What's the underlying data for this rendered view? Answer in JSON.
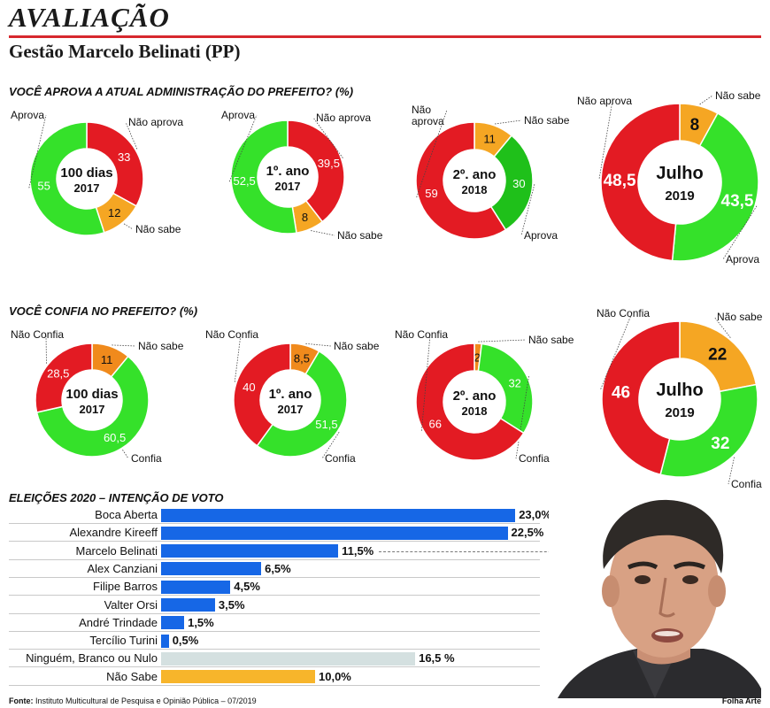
{
  "header": {
    "title": "AVALIAÇÃO",
    "subtitle": "Gestão Marcelo Belinati (PP)"
  },
  "section_approve": "VOCÊ APROVA A ATUAL ADMINISTRAÇÃO DO PREFEITO? (%)",
  "section_trust": "VOCÊ CONFIA NO PREFEITO? (%)",
  "section_votes": "ELEIÇÕES 2020 – INTENÇÃO DE VOTO",
  "colors": {
    "green": "#35e12a",
    "green_dark": "#1fc01a",
    "red": "#e31b23",
    "orange_yellow": "#f5a623",
    "orange": "#f08a1c",
    "blue": "#1667e6",
    "light_gray_bar": "#d4e0e0",
    "yellow_bar": "#f7b52b"
  },
  "chart_data": [
    {
      "type": "pie",
      "title": "VOCÊ APROVA A ATUAL ADMINISTRAÇÃO DO PREFEITO? (%)",
      "donuts": [
        {
          "center": [
            "100 dias",
            "2017"
          ],
          "slices": [
            {
              "label": "Não aprova",
              "value": 33,
              "text": "33",
              "color": "red"
            },
            {
              "label": "Não sabe",
              "value": 12,
              "text": "12",
              "color": "orange_yellow"
            },
            {
              "label": "Aprova",
              "value": 55,
              "text": "55",
              "color": "green"
            }
          ]
        },
        {
          "center": [
            "1º. ano",
            "2017"
          ],
          "slices": [
            {
              "label": "Não aprova",
              "value": 39.5,
              "text": "39,5",
              "color": "red"
            },
            {
              "label": "Não sabe",
              "value": 8,
              "text": "8",
              "color": "orange_yellow"
            },
            {
              "label": "Aprova",
              "value": 52.5,
              "text": "52,5",
              "color": "green"
            }
          ]
        },
        {
          "center": [
            "2º. ano",
            "2018"
          ],
          "slices": [
            {
              "label": "Não sabe",
              "value": 11,
              "text": "11",
              "color": "orange_yellow"
            },
            {
              "label": "Aprova",
              "value": 30,
              "text": "30",
              "color": "green_dark"
            },
            {
              "label": "Não aprova",
              "value": 59,
              "text": "59",
              "color": "red"
            }
          ]
        },
        {
          "center": [
            "Julho",
            "2019"
          ],
          "slices": [
            {
              "label": "Não sabe",
              "value": 8,
              "text": "8",
              "color": "orange_yellow"
            },
            {
              "label": "Aprova",
              "value": 43.5,
              "text": "43,5",
              "color": "green"
            },
            {
              "label": "Não aprova",
              "value": 48.5,
              "text": "48,5",
              "color": "red"
            }
          ]
        }
      ]
    },
    {
      "type": "pie",
      "title": "VOCÊ CONFIA NO PREFEITO? (%)",
      "donuts": [
        {
          "center": [
            "100 dias",
            "2017"
          ],
          "slices": [
            {
              "label": "Não sabe",
              "value": 11,
              "text": "11",
              "color": "orange"
            },
            {
              "label": "Confia",
              "value": 60.5,
              "text": "60,5",
              "color": "green"
            },
            {
              "label": "Não Confia",
              "value": 28.5,
              "text": "28,5",
              "color": "red"
            }
          ]
        },
        {
          "center": [
            "1º. ano",
            "2017"
          ],
          "slices": [
            {
              "label": "Não sabe",
              "value": 8.5,
              "text": "8,5",
              "color": "orange"
            },
            {
              "label": "Confia",
              "value": 51.5,
              "text": "51,5",
              "color": "green"
            },
            {
              "label": "Não Confia",
              "value": 40,
              "text": "40",
              "color": "red"
            }
          ]
        },
        {
          "center": [
            "2º. ano",
            "2018"
          ],
          "slices": [
            {
              "label": "Não sabe",
              "value": 2,
              "text": "2",
              "color": "orange"
            },
            {
              "label": "Confia",
              "value": 32,
              "text": "32",
              "color": "green"
            },
            {
              "label": "Não Confia",
              "value": 66,
              "text": "66",
              "color": "red"
            }
          ]
        },
        {
          "center": [
            "Julho",
            "2019"
          ],
          "slices": [
            {
              "label": "Não sabe",
              "value": 22,
              "text": "22",
              "color": "orange_yellow"
            },
            {
              "label": "Confia",
              "value": 32,
              "text": "32",
              "color": "green"
            },
            {
              "label": "Não Confia",
              "value": 46,
              "text": "46",
              "color": "red"
            }
          ]
        }
      ]
    },
    {
      "type": "bar",
      "title": "ELEIÇÕES 2020 – INTENÇÃO DE VOTO",
      "categories": [
        "Boca Aberta",
        "Alexandre Kireeff",
        "Marcelo Belinati",
        "Alex Canziani",
        "Filipe Barros",
        "Valter Orsi",
        "André Trindade",
        "Tercílio Turini",
        "Ninguém, Branco ou Nulo",
        "Não Sabe"
      ],
      "values": [
        23.0,
        22.5,
        11.5,
        6.5,
        4.5,
        3.5,
        1.5,
        0.5,
        16.5,
        10.0
      ],
      "value_labels": [
        "23,0%",
        "22,5%",
        "11,5%",
        "6,5%",
        "4,5%",
        "3,5%",
        "1,5%",
        "0,5%",
        "16,5 %",
        "10,0%"
      ],
      "bar_colors": [
        "blue",
        "blue",
        "blue",
        "blue",
        "blue",
        "blue",
        "blue",
        "blue",
        "light_gray_bar",
        "yellow_bar"
      ]
    }
  ],
  "footer": {
    "source_label": "Fonte:",
    "source_text": "Instituto Multicultural de Pesquisa e Opinião Pública – 07/2019",
    "credit": "Folha Arte"
  },
  "photo": {
    "icon": "person-portrait"
  }
}
